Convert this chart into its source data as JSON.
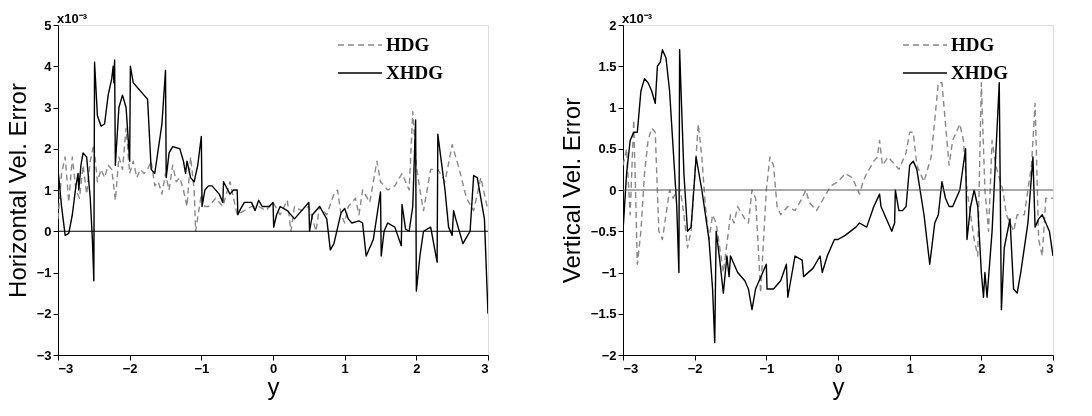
{
  "chart_data": [
    {
      "type": "line",
      "xlabel": "y",
      "ylabel": "Horizontal Vel. Error",
      "xlim": [
        -3,
        3
      ],
      "ylim": [
        -3,
        5
      ],
      "xticks": [
        -3,
        -2,
        -1,
        0,
        1,
        2,
        3
      ],
      "yticks": [
        -3,
        -2,
        -1,
        0,
        1,
        2,
        3,
        4,
        5
      ],
      "annotations": [
        "x10⁻³"
      ],
      "grid": false,
      "legend": "top right",
      "ref_lines": [
        {
          "axis": "y",
          "value": 0,
          "color": "#000000"
        }
      ],
      "series": [
        {
          "name": "HDG",
          "color": "#888888",
          "line_style": "dashed",
          "x": [
            -3,
            -2.95,
            -2.9,
            -2.85,
            -2.8,
            -2.75,
            -2.7,
            -2.65,
            -2.6,
            -2.55,
            -2.5,
            -2.45,
            -2.4,
            -2.35,
            -2.3,
            -2.25,
            -2.2,
            -2.15,
            -2.1,
            -2.05,
            -2.0,
            -1.95,
            -1.9,
            -1.85,
            -1.8,
            -1.75,
            -1.7,
            -1.65,
            -1.6,
            -1.55,
            -1.5,
            -1.45,
            -1.4,
            -1.35,
            -1.3,
            -1.25,
            -1.2,
            -1.15,
            -1.1,
            -1.08,
            -1.0,
            -0.95,
            -0.9,
            -0.8,
            -0.7,
            -0.6,
            -0.5,
            -0.4,
            -0.3,
            -0.2,
            -0.1,
            0.0,
            0.1,
            0.2,
            0.25,
            0.3,
            0.4,
            0.5,
            0.6,
            0.65,
            0.75,
            0.85,
            0.9,
            0.95,
            1.0,
            1.05,
            1.15,
            1.2,
            1.25,
            1.35,
            1.45,
            1.5,
            1.6,
            1.7,
            1.8,
            1.9,
            1.95,
            2.0,
            2.05,
            2.1,
            2.2,
            2.3,
            2.4,
            2.5,
            2.6,
            2.7,
            2.8,
            2.9,
            3.0
          ],
          "values": [
            0.3,
            1.4,
            1.8,
            0.7,
            1.8,
            1.0,
            0.8,
            1.6,
            0.9,
            1.7,
            2.1,
            1.2,
            1.5,
            1.3,
            1.6,
            1.5,
            0.75,
            1.8,
            1.5,
            2.5,
            1.4,
            1.7,
            1.3,
            1.5,
            1.4,
            1.5,
            1.7,
            1.1,
            1.2,
            0.9,
            1.4,
            1.0,
            1.6,
            1.2,
            1.3,
            1.0,
            0.6,
            1.8,
            1.0,
            0.0,
            0.9,
            0.6,
            0.6,
            0.8,
            0.6,
            1.2,
            0.4,
            0.5,
            0.6,
            0.6,
            0.5,
            0.7,
            0.4,
            0.75,
            0.0,
            0.6,
            0.5,
            0.6,
            0.0,
            0.6,
            0.4,
            0.9,
            1.0,
            0.4,
            0.2,
            0.6,
            0.8,
            0.4,
            1.0,
            0.7,
            1.7,
            1.2,
            1.0,
            1.1,
            1.4,
            1.0,
            2.9,
            1.6,
            1.0,
            0.5,
            1.5,
            1.5,
            1.2,
            2.1,
            1.5,
            0.8,
            0.5,
            1.3,
            0.5
          ]
        },
        {
          "name": "XHDG",
          "color": "#000000",
          "line_style": "solid",
          "x": [
            -3,
            -2.95,
            -2.9,
            -2.85,
            -2.8,
            -2.75,
            -2.72,
            -2.71,
            -2.68,
            -2.65,
            -2.6,
            -2.55,
            -2.52,
            -2.5,
            -2.49,
            -2.45,
            -2.4,
            -2.35,
            -2.3,
            -2.25,
            -2.23,
            -2.22,
            -2.21,
            -2.2,
            -2.15,
            -2.1,
            -2.05,
            -2.0,
            -1.99,
            -1.95,
            -1.8,
            -1.75,
            -1.7,
            -1.65,
            -1.55,
            -1.5,
            -1.49,
            -1.45,
            -1.4,
            -1.3,
            -1.25,
            -1.22,
            -1.2,
            -1.15,
            -1.1,
            -1.05,
            -1.0,
            -0.99,
            -0.95,
            -0.9,
            -0.85,
            -0.75,
            -0.7,
            -0.69,
            -0.6,
            -0.55,
            -0.5,
            -0.49,
            -0.45,
            -0.4,
            -0.3,
            -0.25,
            -0.2,
            -0.15,
            -0.05,
            0.0,
            0.01,
            0.05,
            0.1,
            0.2,
            0.3,
            0.4,
            0.5,
            0.51,
            0.55,
            0.65,
            0.75,
            0.8,
            0.85,
            0.95,
            1.0,
            1.05,
            1.1,
            1.2,
            1.25,
            1.3,
            1.4,
            1.5,
            1.51,
            1.55,
            1.6,
            1.7,
            1.79,
            1.8,
            1.85,
            1.9,
            1.95,
            1.99,
            2.0,
            2.05,
            2.1,
            2.2,
            2.29,
            2.3,
            2.4,
            2.45,
            2.5,
            2.52,
            2.55,
            2.65,
            2.75,
            2.8,
            2.85,
            2.95,
            3.0
          ],
          "values": [
            1.5,
            0.6,
            -0.1,
            -0.05,
            0.4,
            1.1,
            1.4,
            1.0,
            1.6,
            1.9,
            1.8,
            0.8,
            -0.2,
            -1.2,
            4.1,
            2.8,
            2.55,
            2.6,
            3.3,
            3.7,
            4.0,
            3.6,
            4.15,
            1.6,
            3.0,
            3.3,
            3.0,
            1.7,
            4.0,
            3.6,
            3.3,
            3.2,
            1.5,
            1.4,
            2.6,
            3.9,
            1.3,
            1.9,
            2.05,
            2.0,
            1.7,
            1.4,
            1.7,
            1.3,
            1.2,
            1.6,
            2.3,
            0.6,
            1.0,
            1.1,
            1.1,
            0.9,
            0.7,
            1.2,
            0.9,
            1.0,
            1.0,
            0.4,
            0.55,
            0.7,
            0.7,
            0.5,
            0.75,
            0.6,
            0.6,
            0.7,
            0.1,
            0.4,
            0.6,
            0.5,
            0.3,
            0.5,
            0.7,
            0.0,
            0.4,
            0.6,
            0.3,
            -0.45,
            -0.3,
            0.45,
            0.55,
            0.3,
            0.2,
            0.25,
            0.2,
            -0.6,
            -0.2,
            0.95,
            -0.6,
            0.0,
            0.2,
            0.1,
            -0.35,
            0.65,
            0.05,
            0.0,
            0.6,
            2.7,
            -1.45,
            -0.6,
            0.0,
            0.1,
            -0.75,
            2.35,
            1.0,
            0.1,
            -0.1,
            0.5,
            0.3,
            -0.3,
            0.0,
            1.35,
            1.3,
            0.3,
            -2.0
          ]
        }
      ]
    },
    {
      "type": "line",
      "xlabel": "y",
      "ylabel": "Vertical Vel. Error",
      "xlim": [
        -3,
        3
      ],
      "ylim": [
        -2,
        2
      ],
      "xticks": [
        -3,
        -2,
        -1,
        0,
        1,
        2,
        3
      ],
      "yticks": [
        -2,
        -1.5,
        -1,
        -0.5,
        0,
        0.5,
        1,
        1.5,
        2
      ],
      "annotations": [
        "x10⁻³"
      ],
      "grid": false,
      "legend": "top right",
      "ref_lines": [
        {
          "axis": "y",
          "value": 0,
          "color": "#555555"
        }
      ],
      "series": [
        {
          "name": "HDG",
          "color": "#888888",
          "line_style": "dashed",
          "x": [
            -3,
            -2.95,
            -2.9,
            -2.85,
            -2.8,
            -2.75,
            -2.7,
            -2.65,
            -2.6,
            -2.55,
            -2.5,
            -2.45,
            -2.4,
            -2.35,
            -2.3,
            -2.25,
            -2.2,
            -2.15,
            -2.1,
            -2.05,
            -1.95,
            -1.9,
            -1.85,
            -1.8,
            -1.75,
            -1.7,
            -1.6,
            -1.5,
            -1.45,
            -1.4,
            -1.3,
            -1.25,
            -1.2,
            -1.15,
            -1.1,
            -1.08,
            -1.0,
            -0.95,
            -0.9,
            -0.85,
            -0.8,
            -0.7,
            -0.6,
            -0.5,
            -0.45,
            -0.4,
            -0.3,
            -0.2,
            -0.1,
            0.0,
            0.1,
            0.2,
            0.3,
            0.35,
            0.4,
            0.5,
            0.55,
            0.58,
            0.62,
            0.7,
            0.8,
            0.85,
            0.9,
            0.95,
            1.0,
            1.05,
            1.1,
            1.2,
            1.3,
            1.4,
            1.45,
            1.5,
            1.55,
            1.6,
            1.7,
            1.75,
            1.8,
            1.9,
            1.95,
            2.0,
            2.05,
            2.1,
            2.15,
            2.2,
            2.3,
            2.35,
            2.45,
            2.5,
            2.6,
            2.7,
            2.75,
            2.8,
            2.85,
            2.9,
            3.0
          ],
          "values": [
            0.3,
            0.5,
            -0.3,
            0.85,
            -0.9,
            -0.5,
            0.2,
            0.6,
            0.75,
            0.7,
            -0.5,
            -0.6,
            -0.3,
            0.0,
            -0.1,
            0.0,
            0.0,
            -0.3,
            -0.7,
            -0.5,
            0.8,
            0.4,
            -0.2,
            -0.6,
            -0.3,
            -0.4,
            -1.0,
            -0.3,
            -0.4,
            -0.2,
            -0.35,
            -0.4,
            0.0,
            -0.1,
            -0.9,
            -1.25,
            0.0,
            0.4,
            0.3,
            -0.2,
            -0.3,
            -0.2,
            -0.25,
            -0.1,
            0.0,
            -0.15,
            -0.25,
            -0.1,
            0.05,
            0.1,
            0.2,
            0.15,
            -0.05,
            0.1,
            0.2,
            0.35,
            0.4,
            0.6,
            0.3,
            0.4,
            0.3,
            0.25,
            0.35,
            0.45,
            0.7,
            0.7,
            0.3,
            0.1,
            0.4,
            1.3,
            1.3,
            0.8,
            0.3,
            0.6,
            0.8,
            0.6,
            0.0,
            -0.6,
            -0.8,
            1.3,
            0.0,
            -0.5,
            0.6,
            0.3,
            0.0,
            -0.3,
            -0.5,
            -0.3,
            -0.3,
            0.3,
            1.05,
            -0.6,
            -0.8,
            -0.1,
            -0.1
          ]
        },
        {
          "name": "XHDG",
          "color": "#000000",
          "line_style": "solid",
          "x": [
            -3,
            -2.95,
            -2.9,
            -2.85,
            -2.8,
            -2.75,
            -2.7,
            -2.65,
            -2.6,
            -2.55,
            -2.52,
            -2.48,
            -2.45,
            -2.4,
            -2.35,
            -2.3,
            -2.25,
            -2.22,
            -2.21,
            -2.15,
            -2.1,
            -2.05,
            -2.0,
            -1.98,
            -1.9,
            -1.8,
            -1.75,
            -1.72,
            -1.7,
            -1.65,
            -1.6,
            -1.55,
            -1.52,
            -1.5,
            -1.4,
            -1.3,
            -1.25,
            -1.2,
            -1.15,
            -1.05,
            -1.0,
            -0.99,
            -0.9,
            -0.8,
            -0.72,
            -0.7,
            -0.6,
            -0.5,
            -0.48,
            -0.35,
            -0.25,
            -0.22,
            -0.15,
            -0.1,
            -0.05,
            0.0,
            0.1,
            0.25,
            0.3,
            0.4,
            0.5,
            0.58,
            0.6,
            0.75,
            0.79,
            0.8,
            0.85,
            0.9,
            0.95,
            1.0,
            1.05,
            1.1,
            1.2,
            1.28,
            1.35,
            1.4,
            1.45,
            1.5,
            1.55,
            1.6,
            1.7,
            1.78,
            1.8,
            1.85,
            1.9,
            1.95,
            2.0,
            2.03,
            2.05,
            2.08,
            2.15,
            2.2,
            2.25,
            2.28,
            2.32,
            2.4,
            2.45,
            2.5,
            2.55,
            2.65,
            2.72,
            2.75,
            2.8,
            2.85,
            2.95,
            3.0
          ],
          "values": [
            -0.5,
            0.2,
            0.6,
            0.7,
            0.7,
            1.2,
            1.35,
            1.3,
            1.2,
            1.05,
            1.5,
            1.55,
            1.7,
            1.6,
            1.2,
            0.5,
            -0.2,
            -1.0,
            1.7,
            0.2,
            -0.5,
            -0.45,
            0.15,
            0.4,
            0.0,
            -0.6,
            -1.2,
            -1.85,
            -0.5,
            -0.85,
            -1.25,
            -0.8,
            -1.05,
            -0.8,
            -1.0,
            -1.1,
            -1.2,
            -1.45,
            -1.2,
            -1.0,
            -0.9,
            -1.2,
            -1.2,
            -1.1,
            -0.9,
            -1.3,
            -0.8,
            -0.85,
            -1.05,
            -0.95,
            -0.8,
            -1.0,
            -0.8,
            -0.7,
            -0.6,
            -0.6,
            -0.55,
            -0.45,
            -0.4,
            -0.45,
            -0.2,
            -0.05,
            -0.2,
            -0.5,
            -0.4,
            0.0,
            -0.25,
            -0.25,
            -0.2,
            0.3,
            0.35,
            0.25,
            -0.3,
            -0.9,
            -0.4,
            -0.3,
            0.1,
            -0.1,
            -0.2,
            -0.2,
            0.0,
            0.5,
            -0.6,
            -0.2,
            0.0,
            -0.2,
            -1.0,
            -1.3,
            -1.0,
            -1.3,
            -0.5,
            0.4,
            1.3,
            -1.45,
            -0.7,
            -0.35,
            -1.2,
            -1.25,
            -1.0,
            -0.4,
            0.4,
            -0.45,
            -0.35,
            -0.3,
            -0.5,
            -0.8
          ]
        }
      ]
    }
  ]
}
